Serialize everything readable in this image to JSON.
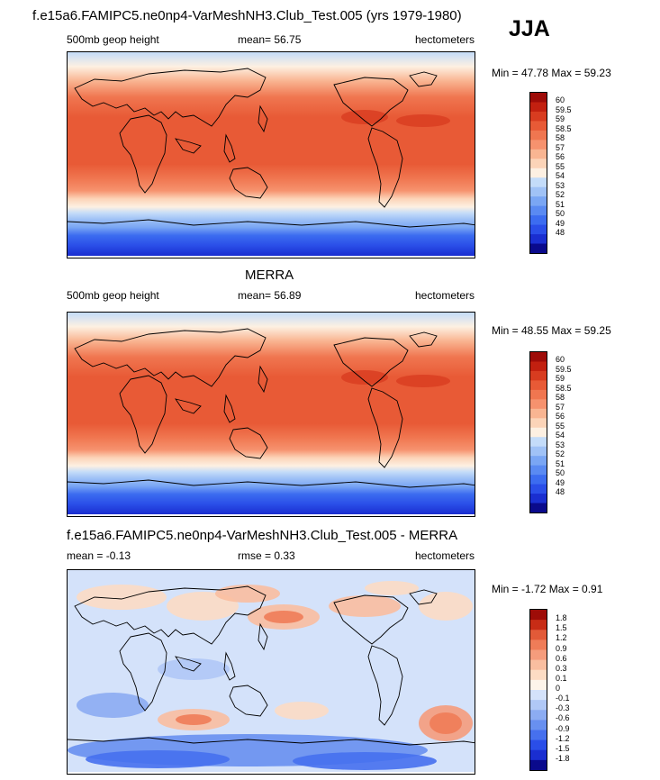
{
  "header": {
    "title": "f.e15a6.FAMIPC5.ne0np4-VarMeshNH3.Club_Test.005 (yrs 1979-1980)",
    "season": "JJA"
  },
  "colors": {
    "height": [
      "#0a0a8c",
      "#1a2ed0",
      "#2a4ee8",
      "#3c6cf0",
      "#5a8af2",
      "#7aa6f4",
      "#a0c2f6",
      "#c4dcf9",
      "#fdf0e2",
      "#fcd4b8",
      "#f9b592",
      "#f6926e",
      "#f07650",
      "#e85a36",
      "#d83c20",
      "#c22010",
      "#9e0c08"
    ],
    "diff": [
      "#0a0a8c",
      "#1a2ed0",
      "#2a4ee8",
      "#4670ee",
      "#6890f0",
      "#8cacf2",
      "#b0c8f6",
      "#d4e2fa",
      "#fdf4ea",
      "#fcdcc4",
      "#f9bea0",
      "#f59c7c",
      "#ef7c58",
      "#e25a38",
      "#c82c16",
      "#9e0c08"
    ]
  },
  "panels": [
    {
      "subtitle_left": "500mb geop height",
      "mean_text": "mean=  56.75",
      "units": "hectometers",
      "minmax": "Min =  47.78 Max =  59.23"
    },
    {
      "title": "MERRA",
      "subtitle_left": "500mb geop height",
      "mean_text": "mean=  56.89",
      "units": "hectometers",
      "minmax": "Min =  48.55 Max =  59.25"
    },
    {
      "title": "f.e15a6.FAMIPC5.ne0np4-VarMeshNH3.Club_Test.005 - MERRA",
      "subtitle_left": "mean =  -0.13",
      "rmse_text": "rmse =   0.33",
      "units": "hectometers",
      "minmax": "Min =  -1.72 Max =   0.91"
    }
  ],
  "chart_data": [
    {
      "type": "heatmap",
      "title": "f.e15a6.FAMIPC5.ne0np4-VarMeshNH3.Club_Test.005 (yrs 1979-1980)",
      "variable": "500mb geop height",
      "units": "hectometers",
      "mean": 56.75,
      "min": 47.78,
      "max": 59.23,
      "legend_levels": [
        "60",
        "59.5",
        "59",
        "58.5",
        "58",
        "57",
        "56",
        "55",
        "54",
        "53",
        "52",
        "51",
        "50",
        "49",
        "48"
      ]
    },
    {
      "type": "heatmap",
      "title": "MERRA",
      "variable": "500mb geop height",
      "units": "hectometers",
      "mean": 56.89,
      "min": 48.55,
      "max": 59.25,
      "legend_levels": [
        "60",
        "59.5",
        "59",
        "58.5",
        "58",
        "57",
        "56",
        "55",
        "54",
        "53",
        "52",
        "51",
        "50",
        "49",
        "48"
      ]
    },
    {
      "type": "heatmap",
      "title": "f.e15a6.FAMIPC5.ne0np4-VarMeshNH3.Club_Test.005 - MERRA",
      "units": "hectometers",
      "mean": -0.13,
      "rmse": 0.33,
      "min": -1.72,
      "max": 0.91,
      "legend_levels": [
        "1.8",
        "1.5",
        "1.2",
        "0.9",
        "0.6",
        "0.3",
        "0.1",
        "0",
        "-0.1",
        "-0.3",
        "-0.6",
        "-0.9",
        "-1.2",
        "-1.5",
        "-1.8"
      ]
    }
  ]
}
